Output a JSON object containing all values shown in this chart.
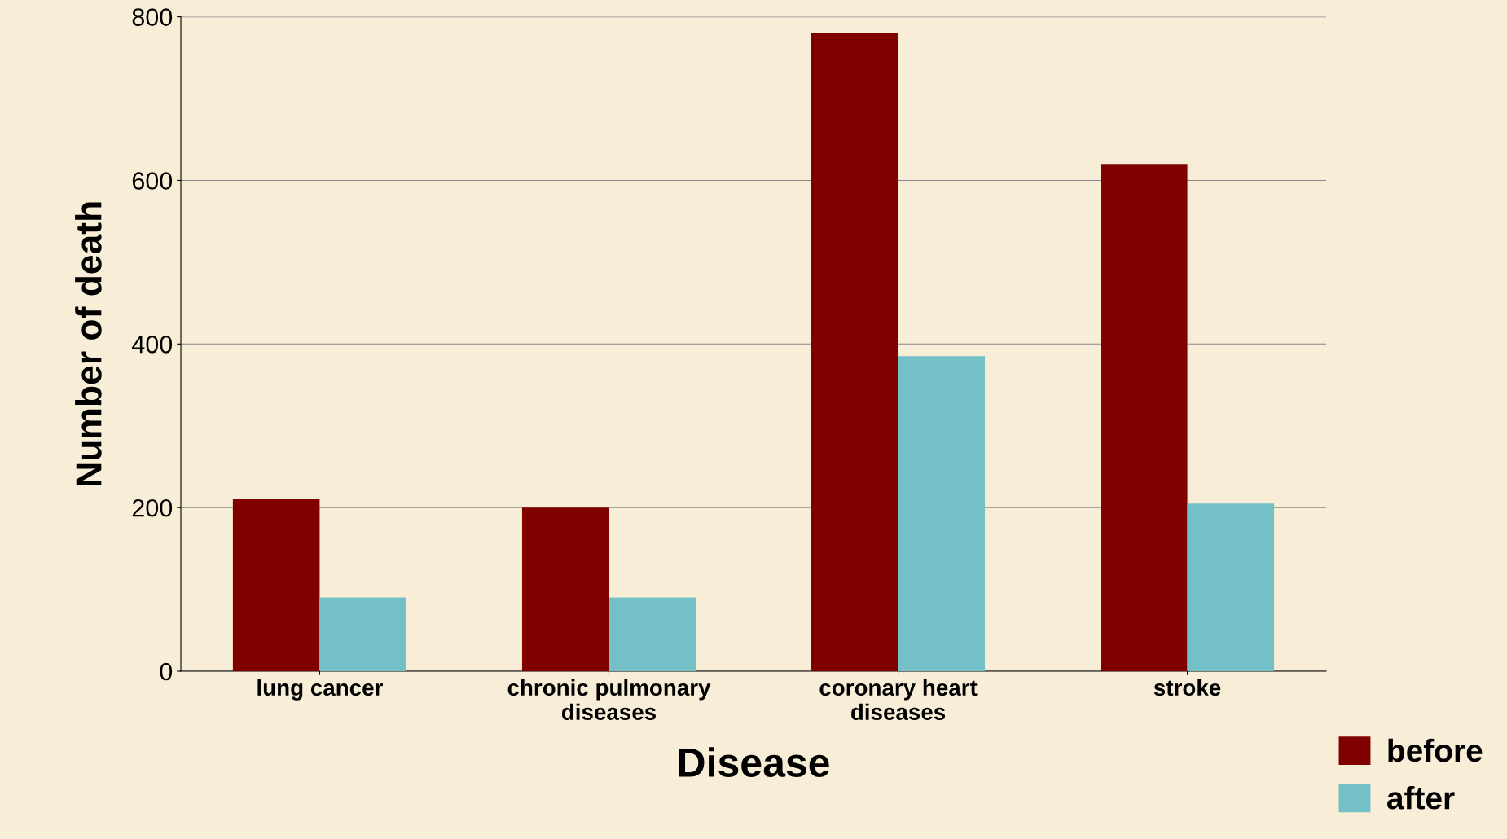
{
  "chart_data": {
    "type": "bar",
    "xlabel": "Disease",
    "ylabel": "Number of death",
    "categories": [
      "lung cancer",
      "chronic pulmonary\ndiseases",
      "coronary heart\ndiseases",
      "stroke"
    ],
    "series": [
      {
        "name": "before",
        "color": "#800000",
        "values": [
          210,
          200,
          780,
          620
        ]
      },
      {
        "name": "after",
        "color": "#74c0c7",
        "values": [
          90,
          90,
          385,
          205
        ]
      }
    ],
    "ylim": [
      0,
      800
    ],
    "yticks": [
      0,
      200,
      400,
      600,
      800
    ],
    "grid": "y",
    "legend": "bottom right"
  }
}
